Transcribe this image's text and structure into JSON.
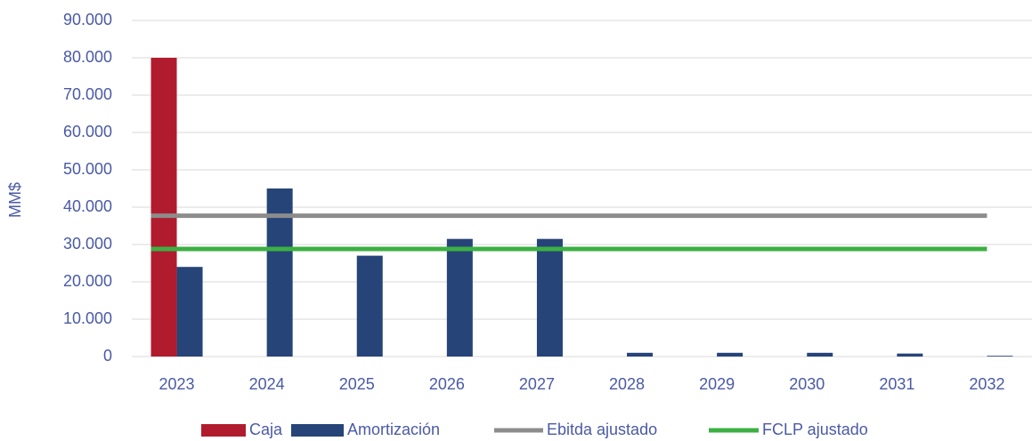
{
  "chart_data": {
    "type": "bar",
    "y_label": "MM$",
    "categories": [
      "2023",
      "2024",
      "2025",
      "2026",
      "2027",
      "2028",
      "2029",
      "2030",
      "2031",
      "2032"
    ],
    "series": [
      {
        "name": "Caja",
        "type": "bar",
        "color": "#b01c2e",
        "values": [
          80000,
          null,
          null,
          null,
          null,
          null,
          null,
          null,
          null,
          null
        ]
      },
      {
        "name": "Amortización",
        "type": "bar",
        "color": "#264478",
        "values": [
          24000,
          45000,
          27000,
          31500,
          31500,
          1000,
          1000,
          1000,
          800,
          200
        ]
      },
      {
        "name": "Ebitda ajustado",
        "type": "line",
        "color": "#8c8c8c",
        "values": [
          37700,
          37700,
          37700,
          37700,
          37700,
          37700,
          37700,
          37700,
          37700,
          37700
        ]
      },
      {
        "name": "FCLP ajustado",
        "type": "line",
        "color": "#3cb043",
        "values": [
          28800,
          28800,
          28800,
          28800,
          28800,
          28800,
          28800,
          28800,
          28800,
          28800
        ]
      }
    ],
    "ylim": [
      0,
      90000
    ],
    "yticks": [
      0,
      {
        "value": 10000,
        "label": "10.000"
      },
      {
        "value": 20000,
        "label": "20.000"
      },
      {
        "value": 30000,
        "label": "30.000"
      },
      {
        "value": 40000,
        "label": "40.000"
      },
      {
        "value": 50000,
        "label": "50.000"
      },
      {
        "value": 60000,
        "label": "60.000"
      },
      {
        "value": 70000,
        "label": "70.000"
      },
      {
        "value": 80000,
        "label": "80.000"
      },
      {
        "value": 90000,
        "label": "90.000"
      }
    ],
    "grid": true,
    "legend": "bottom"
  }
}
